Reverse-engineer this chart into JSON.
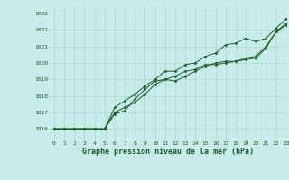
{
  "title": "",
  "xlabel": "Graphe pression niveau de la mer (hPa)",
  "ylabel": "",
  "xlim": [
    -0.5,
    23
  ],
  "ylim": [
    1015.3,
    1023.5
  ],
  "yticks": [
    1016,
    1017,
    1018,
    1019,
    1020,
    1021,
    1022,
    1023
  ],
  "xticks": [
    0,
    1,
    2,
    3,
    4,
    5,
    6,
    7,
    8,
    9,
    10,
    11,
    12,
    13,
    14,
    15,
    16,
    17,
    18,
    19,
    20,
    21,
    22,
    23
  ],
  "background_color": "#c8ece9",
  "grid_color": "#a8d8d0",
  "line_color": "#1a5c2a",
  "line1": [
    1016.0,
    1016.0,
    1016.0,
    1016.0,
    1016.0,
    1016.0,
    1017.0,
    1017.3,
    1017.6,
    1018.1,
    1018.7,
    1019.0,
    1019.2,
    1019.5,
    1019.6,
    1019.9,
    1019.9,
    1020.0,
    1020.1,
    1020.2,
    1020.3,
    1020.9,
    1021.9,
    1022.3
  ],
  "line2": [
    1016.0,
    1016.0,
    1016.0,
    1016.0,
    1016.0,
    1016.0,
    1016.9,
    1017.1,
    1017.8,
    1018.4,
    1018.9,
    1019.0,
    1018.9,
    1019.2,
    1019.5,
    1019.8,
    1020.0,
    1020.1,
    1020.1,
    1020.3,
    1020.4,
    1021.0,
    1021.9,
    1022.4
  ],
  "line3": [
    1016.0,
    1016.0,
    1016.0,
    1016.0,
    1016.0,
    1016.0,
    1017.3,
    1017.7,
    1018.1,
    1018.6,
    1019.0,
    1019.5,
    1019.5,
    1019.9,
    1020.0,
    1020.4,
    1020.6,
    1021.1,
    1021.2,
    1021.5,
    1021.3,
    1021.5,
    1022.1,
    1022.7
  ],
  "marker_size": 1.5,
  "line_width": 0.7
}
